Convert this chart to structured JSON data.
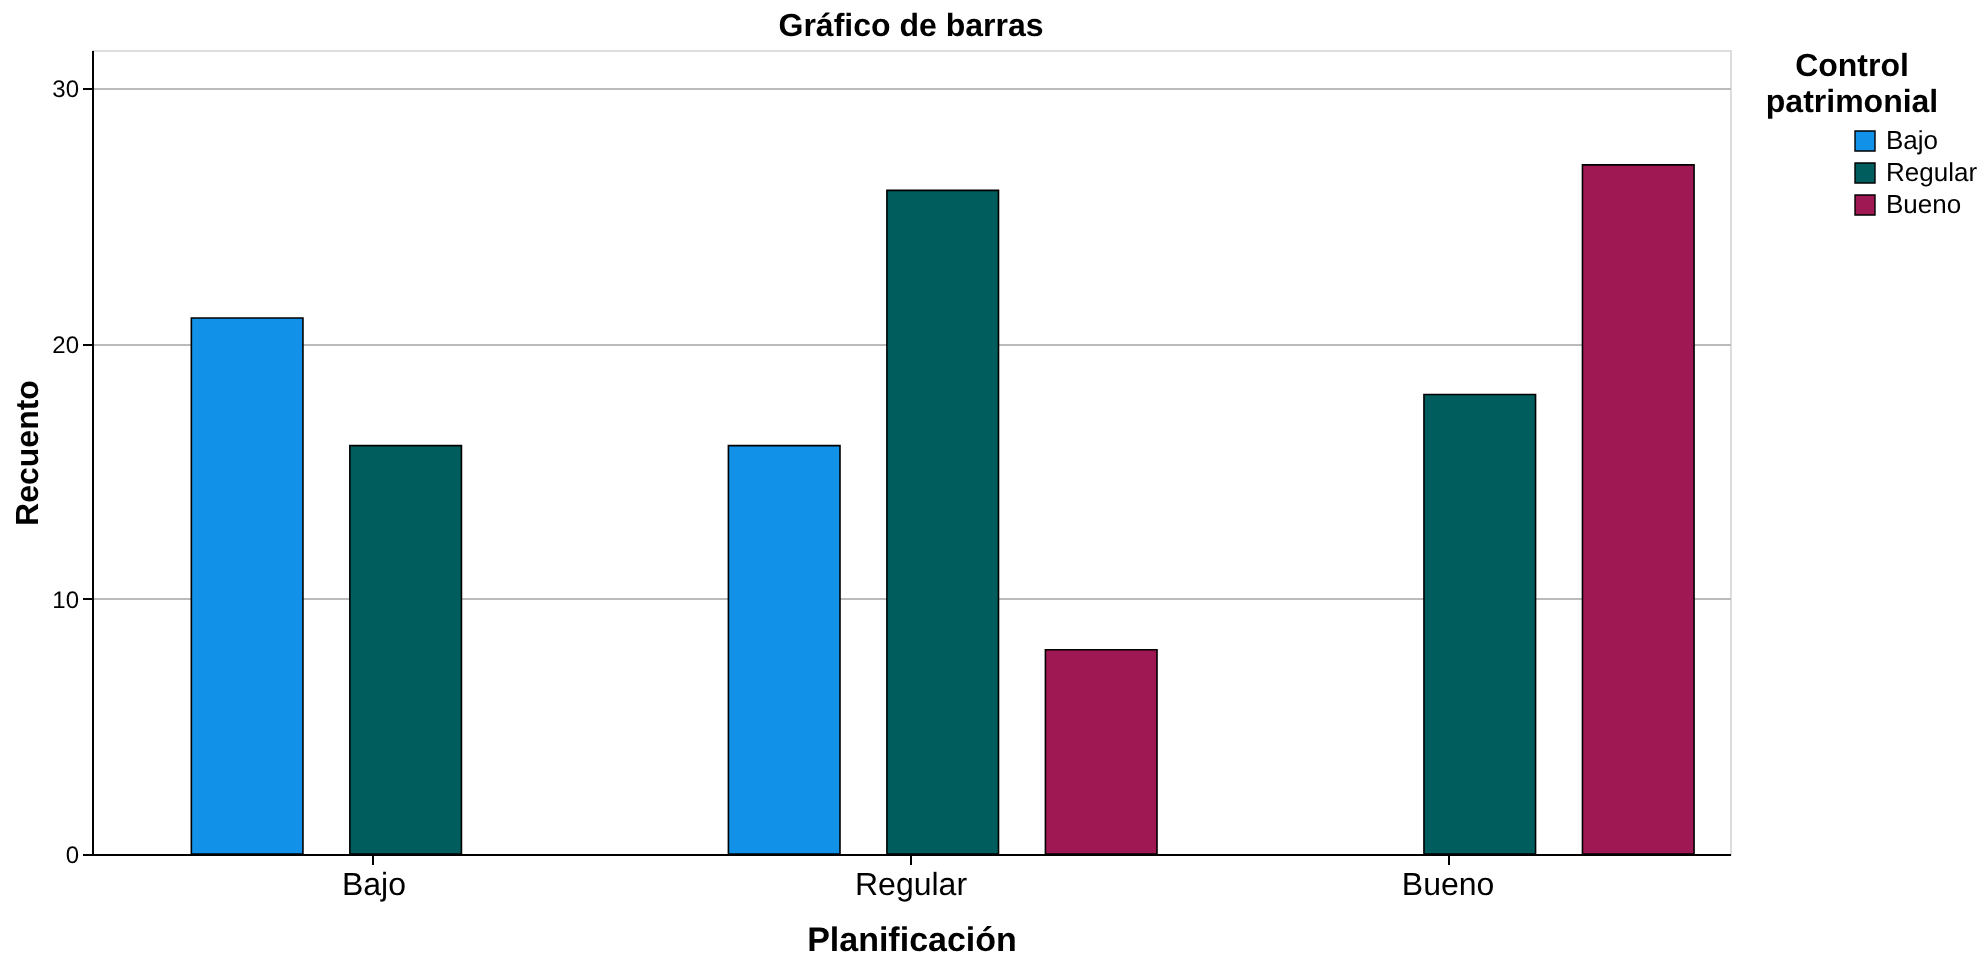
{
  "chart_data": {
    "type": "bar",
    "title": "Gráfico de barras",
    "xlabel": "Planificación",
    "ylabel": "Recuento",
    "legend_title": "Control patrimonial",
    "categories": [
      "Bajo",
      "Regular",
      "Bueno"
    ],
    "series": [
      {
        "name": "Bajo",
        "color": "#1192e8",
        "values": [
          21,
          16,
          null
        ]
      },
      {
        "name": "Regular",
        "color": "#005d5d",
        "values": [
          16,
          26,
          18
        ]
      },
      {
        "name": "Bueno",
        "color": "#9f1853",
        "values": [
          null,
          8,
          27
        ]
      }
    ],
    "ylim": [
      0,
      31.5
    ],
    "yticks": [
      0,
      10,
      20,
      30
    ],
    "grid": "y",
    "legend": "top right"
  }
}
